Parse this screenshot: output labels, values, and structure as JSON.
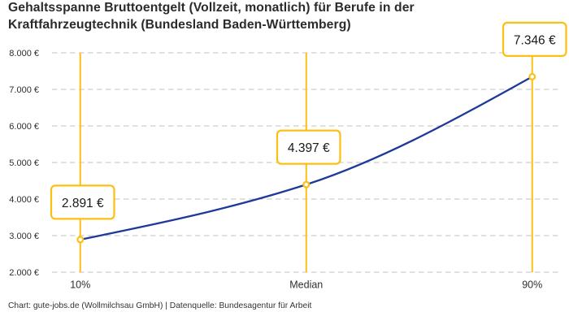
{
  "header": {
    "title_line1": "Gehaltsspanne Bruttoentgelt (Vollzeit, monatlich) für Berufe in der",
    "title_line2": "Kraftfahrzeugtechnik (Bundesland Baden-Württemberg)"
  },
  "footer": {
    "credit": "Chart: gute-jobs.de (Wollmilchsau GmbH) | Datenquelle: Bundesagentur für Arbeit"
  },
  "chart_data": {
    "type": "line",
    "title": "Gehaltsspanne Bruttoentgelt (Vollzeit, monatlich) für Berufe in der Kraftfahrzeugtechnik (Bundesland Baden-Württemberg)",
    "categories": [
      "10%",
      "Median",
      "90%"
    ],
    "values": [
      2891,
      4397,
      7346
    ],
    "value_labels": [
      "2.891 €",
      "4.397 €",
      "7.346 €"
    ],
    "ytick_labels": [
      "2.000 €",
      "3.000 €",
      "4.000 €",
      "5.000 €",
      "6.000 €",
      "7.000 €",
      "8.000 €"
    ],
    "ylim": [
      2000,
      8000
    ],
    "ytick_step": 1000,
    "grid": "horizontal dashed",
    "legend": "none",
    "xlabel": "",
    "ylabel": "",
    "colors": {
      "accent_yellow": "#fcbf14",
      "line_blue": "#1e3a98",
      "grid_gray": "#c2c2c2",
      "text_dark": "#2b2b2b"
    }
  }
}
